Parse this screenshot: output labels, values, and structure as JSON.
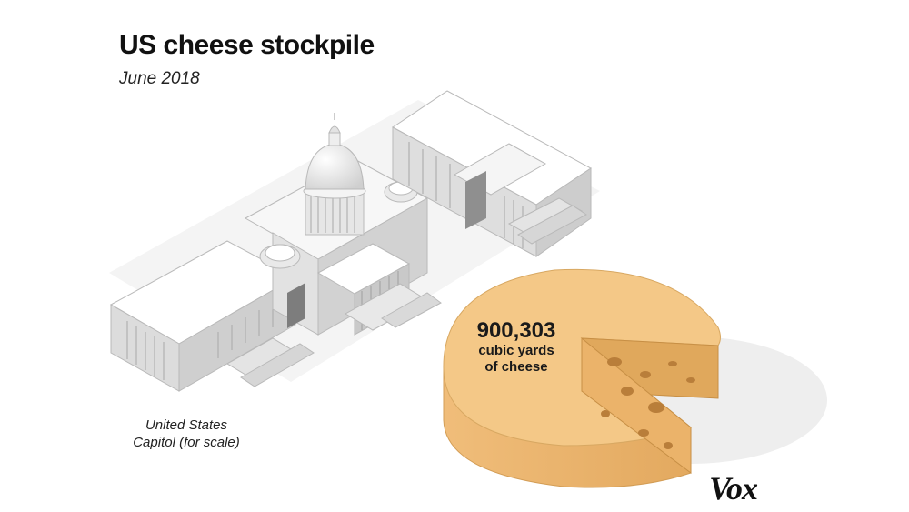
{
  "title": "US cheese stockpile",
  "subtitle": "June 2018",
  "capitol_caption": {
    "line1": "United States",
    "line2": "Capitol (for scale)"
  },
  "cheese": {
    "value": "900,303",
    "unit_line1": "cubic yards",
    "unit_line2": "of cheese"
  },
  "logo": "Vox",
  "colors": {
    "cheese_top": "#f4c887",
    "cheese_side": "#ebb36a",
    "cheese_cut": "#e0a85c",
    "cheese_holes": "#b97e3a",
    "building": "#f1f1f1",
    "building_shadow": "#c9c9c9",
    "text": "#111111"
  }
}
